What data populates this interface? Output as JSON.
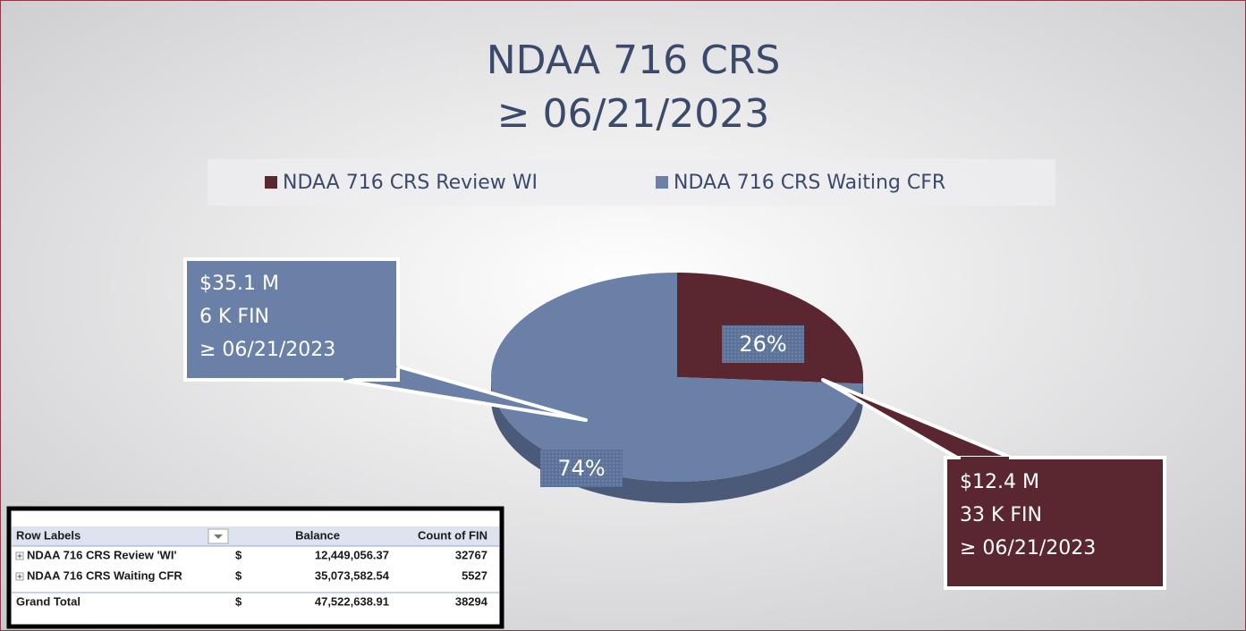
{
  "chart_data": {
    "type": "pie",
    "title": "NDAA 716 CRS",
    "subtitle": "≥ 06/21/2023",
    "categories": [
      "NDAA 716 CRS Review WI",
      "NDAA 716 CRS Waiting CFR"
    ],
    "values": [
      26,
      74
    ],
    "value_labels": [
      "26%",
      "74%"
    ],
    "colors": [
      "#5a2630",
      "#6b80a6"
    ],
    "legend": "top",
    "annotations": [
      {
        "lines": [
          "$12.4 M",
          "33 K FIN",
          "≥ 06/21/2023"
        ]
      },
      {
        "lines": [
          "$35.1 M",
          "6 K FIN",
          "≥ 06/21/2023"
        ]
      }
    ]
  },
  "table": {
    "header": [
      "Row Labels",
      "Balance",
      "Count of FIN"
    ],
    "rows": [
      [
        "NDAA 716 CRS Review 'WI'",
        "$",
        "12,449,056.37",
        32767
      ],
      [
        "NDAA 716 CRS Waiting CFR",
        "$",
        "35,073,582.54",
        5527
      ],
      [
        "Grand Total",
        "$",
        "47,522,638.91",
        38294
      ]
    ]
  }
}
